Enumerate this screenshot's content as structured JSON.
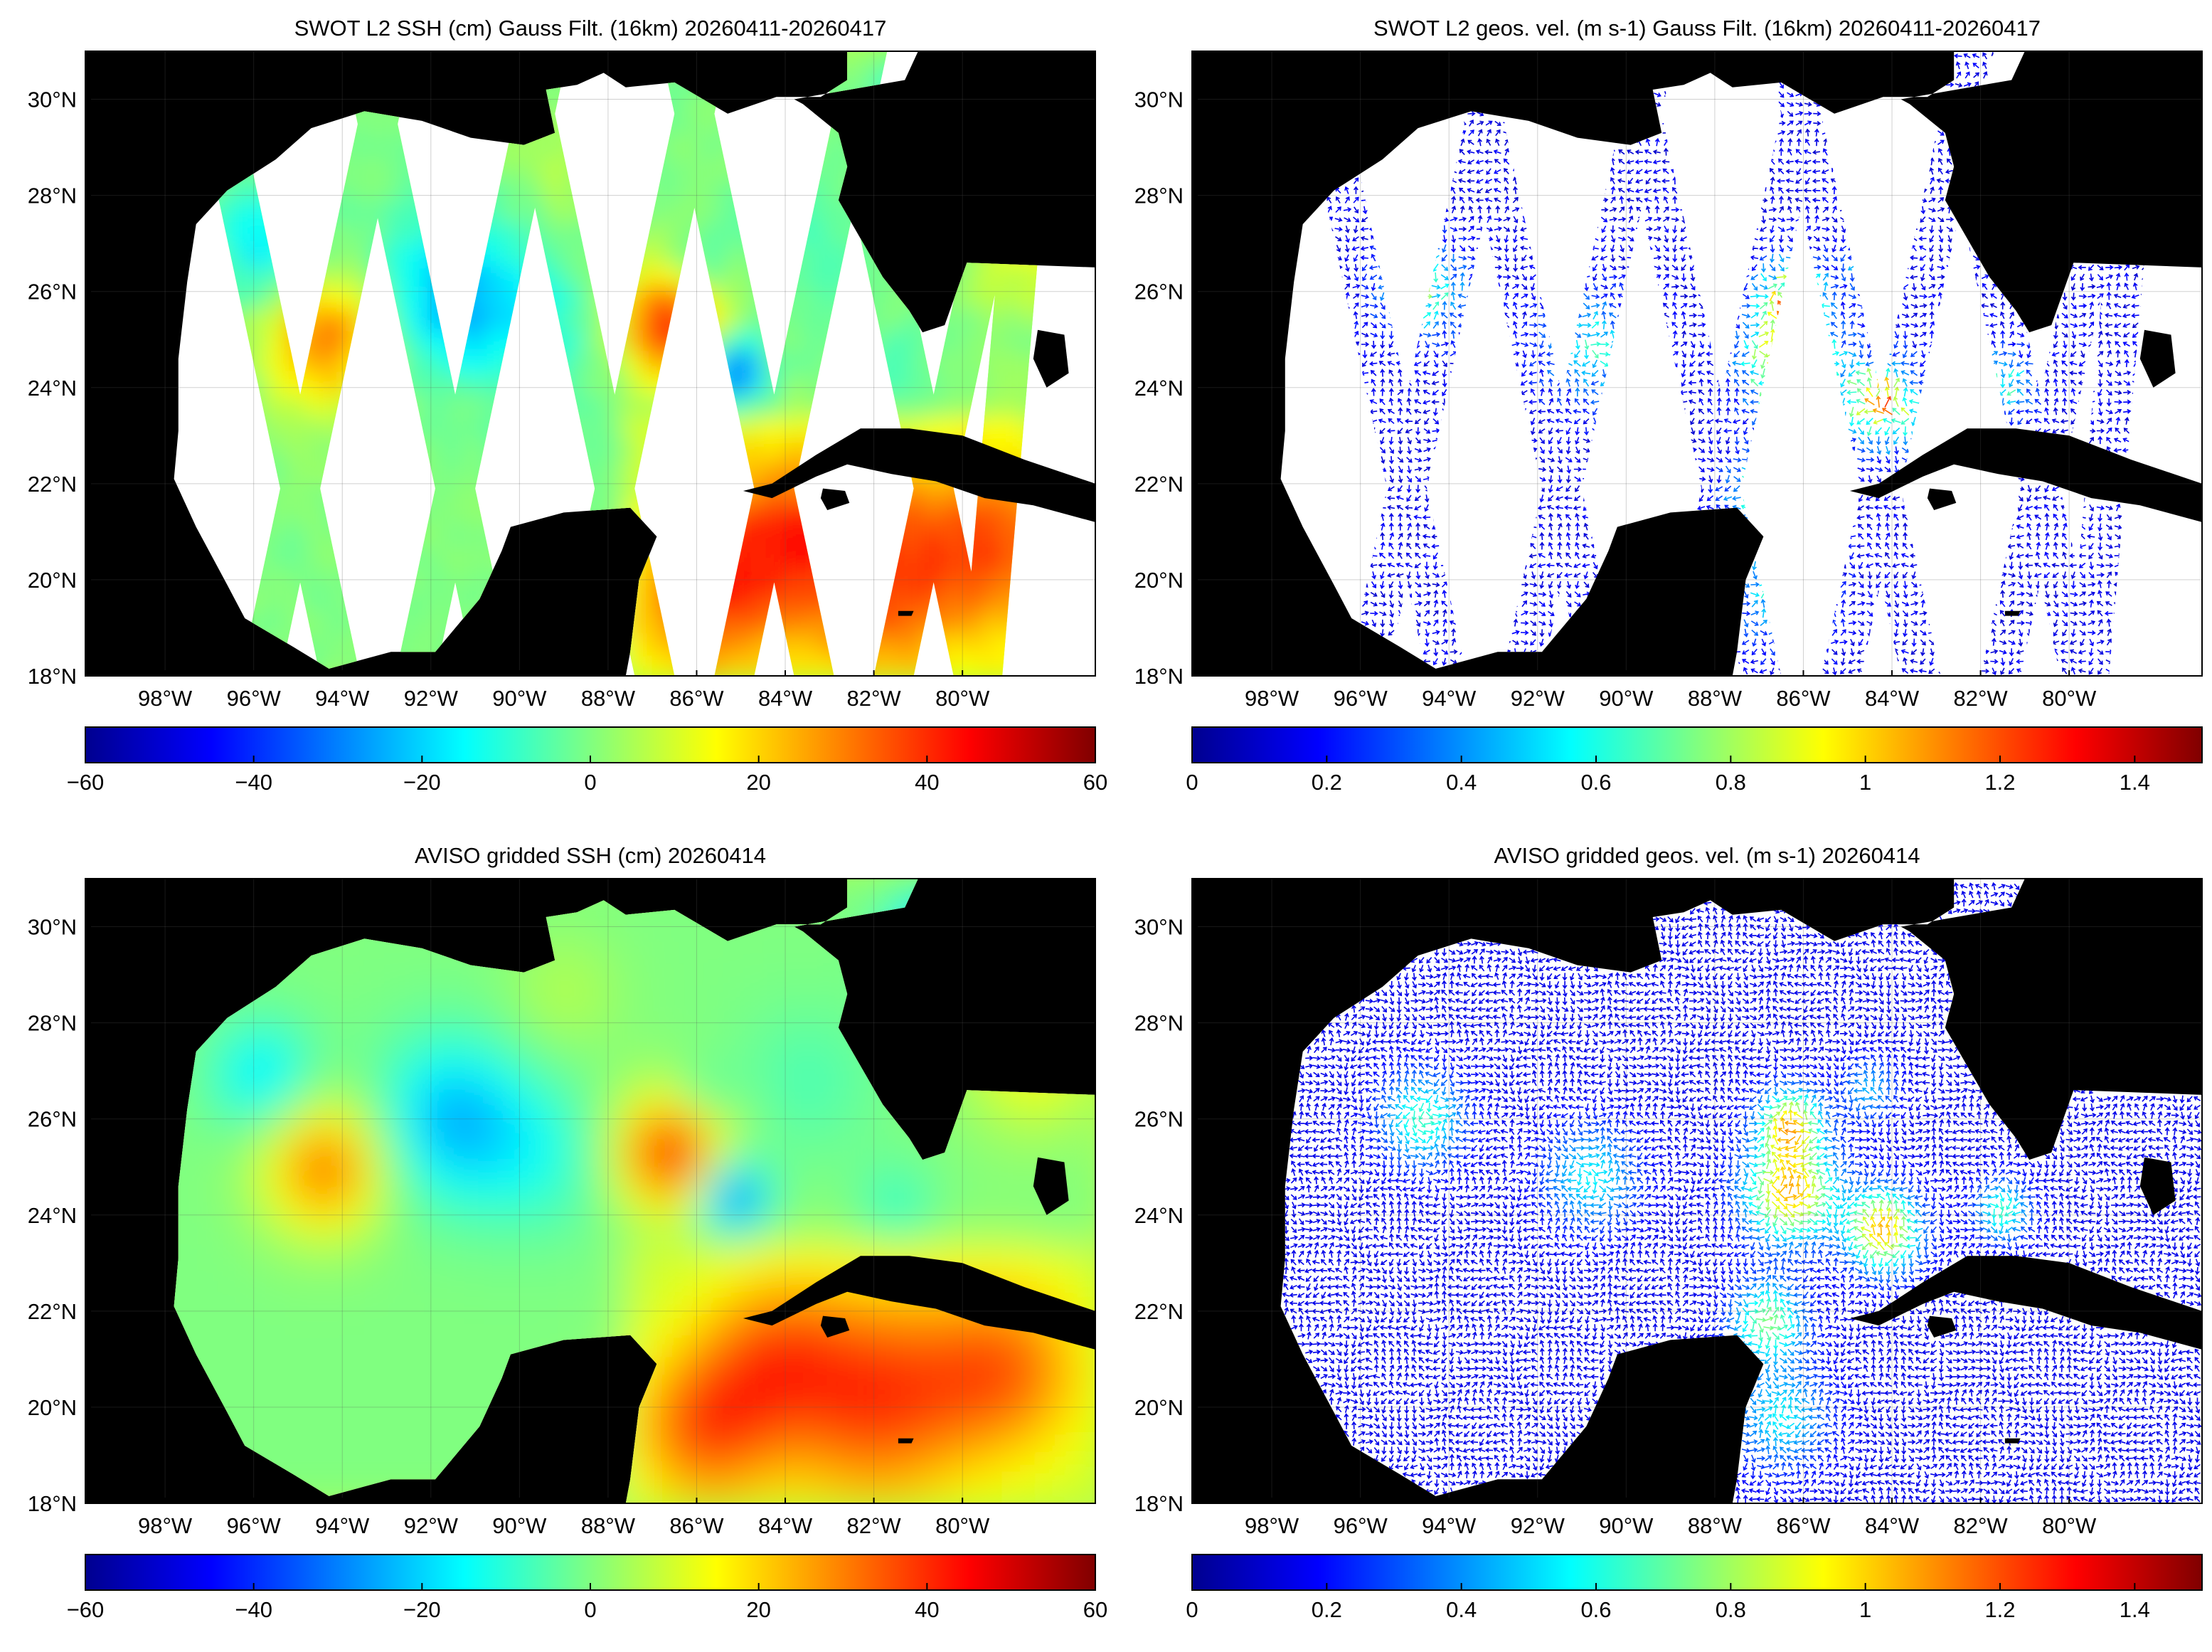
{
  "colors": {
    "land": "#000000",
    "missing": "#ffffff",
    "jet": [
      "#00008f",
      "#0000ff",
      "#0080ff",
      "#00ffff",
      "#80ff80",
      "#ffff00",
      "#ff8000",
      "#ff0000",
      "#800000"
    ]
  },
  "map": {
    "lon_range": [
      -99.8,
      -77.0
    ],
    "lat_range": [
      18.0,
      31.0
    ],
    "lon_ticks": [
      "98°W",
      "96°W",
      "94°W",
      "92°W",
      "90°W",
      "88°W",
      "86°W",
      "84°W",
      "82°W",
      "80°W"
    ],
    "lat_ticks": [
      "30°N",
      "28°N",
      "26°N",
      "24°N",
      "22°N",
      "20°N",
      "18°N"
    ]
  },
  "panels": [
    {
      "title": "SWOT L2 SSH (cm) Gauss Filt. (16km) 20260411-20260417",
      "field": "ssh",
      "coverage": "swaths",
      "colorbar": {
        "min": -60,
        "max": 60,
        "ticks": [
          "−60",
          "−40",
          "−20",
          "0",
          "20",
          "40",
          "60"
        ]
      }
    },
    {
      "title": "SWOT L2 geos. vel. (m s-1) Gauss Filt. (16km) 20260411-20260417",
      "field": "velocity",
      "coverage": "swaths",
      "colorbar": {
        "min": 0,
        "max": 1.5,
        "ticks": [
          "0",
          "0.2",
          "0.4",
          "0.6",
          "0.8",
          "1",
          "1.2",
          "1.4"
        ]
      }
    },
    {
      "title": "AVISO gridded SSH (cm) 20260414",
      "field": "ssh",
      "coverage": "full",
      "colorbar": {
        "min": -60,
        "max": 60,
        "ticks": [
          "−60",
          "−40",
          "−20",
          "0",
          "20",
          "40",
          "60"
        ]
      }
    },
    {
      "title": "AVISO gridded geos. vel. (m s-1)  20260414",
      "field": "velocity",
      "coverage": "full",
      "colorbar": {
        "min": 0,
        "max": 1.5,
        "ticks": [
          "0",
          "0.2",
          "0.4",
          "0.6",
          "0.8",
          "1",
          "1.2",
          "1.4"
        ]
      }
    }
  ]
}
